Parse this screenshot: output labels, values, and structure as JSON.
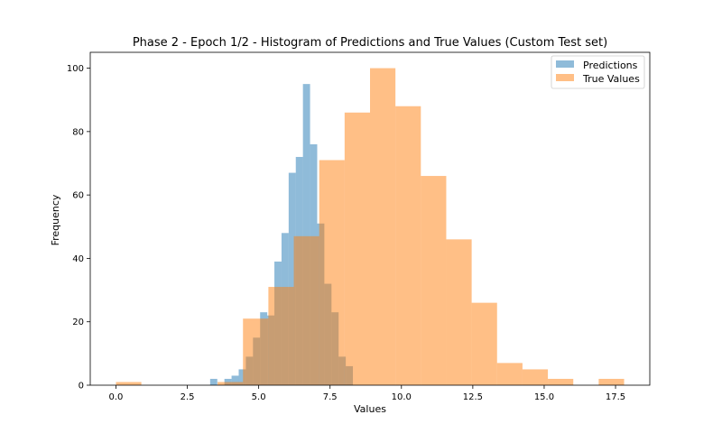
{
  "chart_data": {
    "type": "histogram",
    "title": "Phase 2 - Epoch 1/2 - Histogram of Predictions and True Values (Custom Test set)",
    "xlabel": "Values",
    "ylabel": "Frequency",
    "xlim": [
      -0.9,
      18.7
    ],
    "ylim": [
      0,
      105
    ],
    "xticks": [
      0,
      2.5,
      5,
      7.5,
      10,
      12.5,
      15,
      17.5
    ],
    "xtick_labels": [
      "0.0",
      "2.5",
      "5.0",
      "7.5",
      "10.0",
      "12.5",
      "15.0",
      "17.5"
    ],
    "yticks": [
      0,
      20,
      40,
      60,
      80,
      100
    ],
    "ytick_labels": [
      "0",
      "20",
      "40",
      "60",
      "80",
      "100"
    ],
    "legend_position": "top-right",
    "series": [
      {
        "name": "Predictions",
        "color": "#1f77b4",
        "opacity": 0.5,
        "bin_start": 3.3,
        "bin_width": 0.25,
        "counts": [
          2,
          0,
          2,
          3,
          5,
          9,
          15,
          23,
          22,
          39,
          48,
          67,
          72,
          95,
          76,
          51,
          32,
          23,
          9,
          6
        ]
      },
      {
        "name": "True Values",
        "color": "#ff7f0e",
        "opacity": 0.5,
        "bin_start": 0.0,
        "bin_width": 0.89,
        "counts": [
          1,
          0,
          0,
          0,
          1,
          21,
          31,
          47,
          71,
          86,
          100,
          88,
          66,
          46,
          26,
          7,
          5,
          2,
          0,
          2
        ]
      }
    ]
  }
}
